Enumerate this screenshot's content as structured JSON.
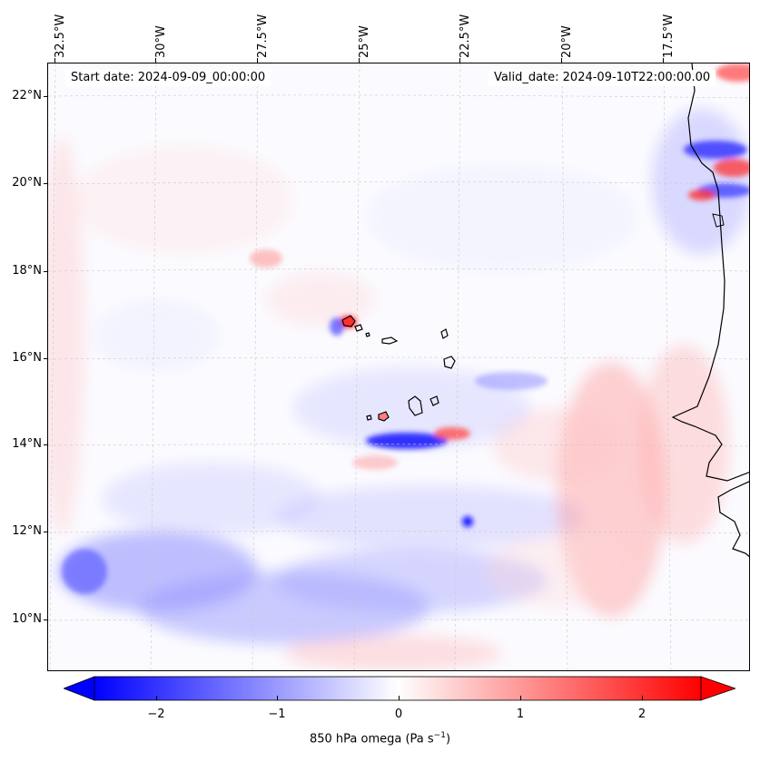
{
  "map": {
    "start_date": "Start date: 2024-09-09_00:00:00",
    "valid_date": "Valid_date: 2024-09-10T22:00:00.00",
    "lon_labels": [
      "32.5°W",
      "30°W",
      "27.5°W",
      "25°W",
      "22.5°W",
      "20°W",
      "17.5°W"
    ],
    "lat_labels": [
      "22°N",
      "20°N",
      "18°N",
      "16°N",
      "14°N",
      "12°N",
      "10°N"
    ],
    "field": "850 hPa omega",
    "colormap": {
      "negative": "#0000ff",
      "zero": "#ffffff",
      "positive": "#ff0000"
    },
    "coastline_color": "#000000",
    "gridlines": true
  },
  "colorbar": {
    "ticks": [
      "−2",
      "−1",
      "0",
      "1",
      "2"
    ],
    "title": "850 hPa omega (Pa s",
    "title_sup": "−1",
    "title_end": ")",
    "range": [
      -2.6,
      2.6
    ],
    "extend": "both"
  }
}
